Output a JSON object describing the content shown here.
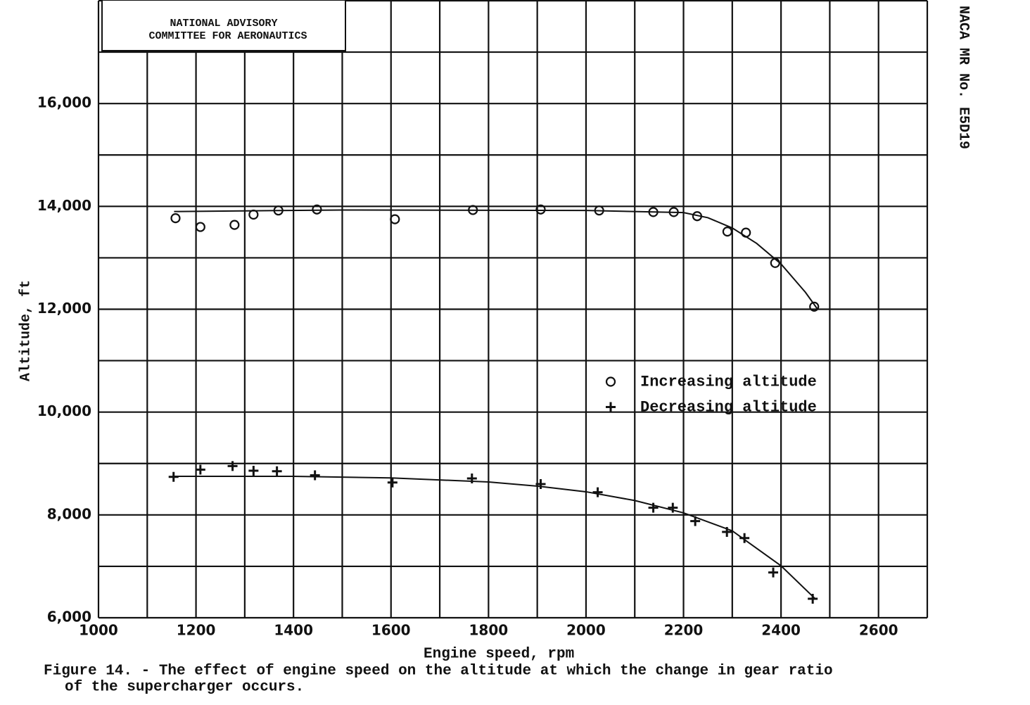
{
  "chart_data": {
    "type": "scatter",
    "stamp": [
      "NATIONAL ADVISORY",
      "COMMITTEE FOR AERONAUTICS"
    ],
    "side_label": "NACA MR No. E5D19",
    "caption": [
      "Figure 14. - The effect of engine speed on the altitude at which the change in gear ratio",
      "of the supercharger occurs."
    ],
    "x_label": "Engine speed, rpm",
    "y_label": "Altitude, ft",
    "xlim": [
      1000,
      2700
    ],
    "ylim": [
      6000,
      18000
    ],
    "xticks": [
      1000,
      1200,
      1400,
      1600,
      1800,
      2000,
      2200,
      2400,
      2600
    ],
    "minor_xticks": [
      1100,
      1300,
      1500,
      1700,
      1900,
      2100,
      2300,
      2500,
      2700
    ],
    "yticks": [
      {
        "value": 6000,
        "label": "6,000"
      },
      {
        "value": 8000,
        "label": "8,000"
      },
      {
        "value": 10000,
        "label": "10,000"
      },
      {
        "value": 12000,
        "label": "12,000"
      },
      {
        "value": 14000,
        "label": "14,000"
      },
      {
        "value": 16000,
        "label": "16,000"
      }
    ],
    "minor_yticks": [
      7000,
      9000,
      11000,
      13000,
      15000,
      17000,
      18000
    ],
    "grid": true,
    "legend": "right",
    "series": [
      {
        "name": "Increasing altitude",
        "marker": "circle",
        "color": "#111111",
        "x": [
          1158,
          1209,
          1279,
          1318,
          1369,
          1448,
          1608,
          1768,
          1907,
          2027,
          2138,
          2180,
          2228,
          2290,
          2328,
          2388,
          2468
        ],
        "values": [
          13770,
          13600,
          13640,
          13840,
          13920,
          13940,
          13750,
          13930,
          13940,
          13920,
          13890,
          13890,
          13810,
          13510,
          13490,
          12900,
          12050
        ]
      },
      {
        "name": "Decreasing altitude",
        "marker": "plus",
        "color": "#111111",
        "x": [
          1154,
          1209,
          1275,
          1318,
          1366,
          1444,
          1603,
          1766,
          1907,
          2024,
          2138,
          2178,
          2224,
          2289,
          2325,
          2384,
          2465
        ],
        "values": [
          8740,
          8880,
          8950,
          8860,
          8850,
          8770,
          8630,
          8710,
          8600,
          8440,
          8140,
          8140,
          7880,
          7670,
          7550,
          6880,
          6370
        ]
      }
    ],
    "curves": [
      {
        "color": "#111111",
        "x": [
          1155,
          1500,
          2000,
          2200,
          2250,
          2300,
          2350,
          2400,
          2450,
          2475
        ],
        "values": [
          13900,
          13930,
          13920,
          13880,
          13780,
          13580,
          13280,
          12880,
          12330,
          12000
        ]
      },
      {
        "color": "#111111",
        "x": [
          1155,
          1400,
          1600,
          1800,
          1900,
          2000,
          2100,
          2200,
          2300,
          2400,
          2470
        ],
        "values": [
          8750,
          8750,
          8720,
          8640,
          8560,
          8450,
          8280,
          8040,
          7690,
          7010,
          6370
        ]
      }
    ]
  }
}
